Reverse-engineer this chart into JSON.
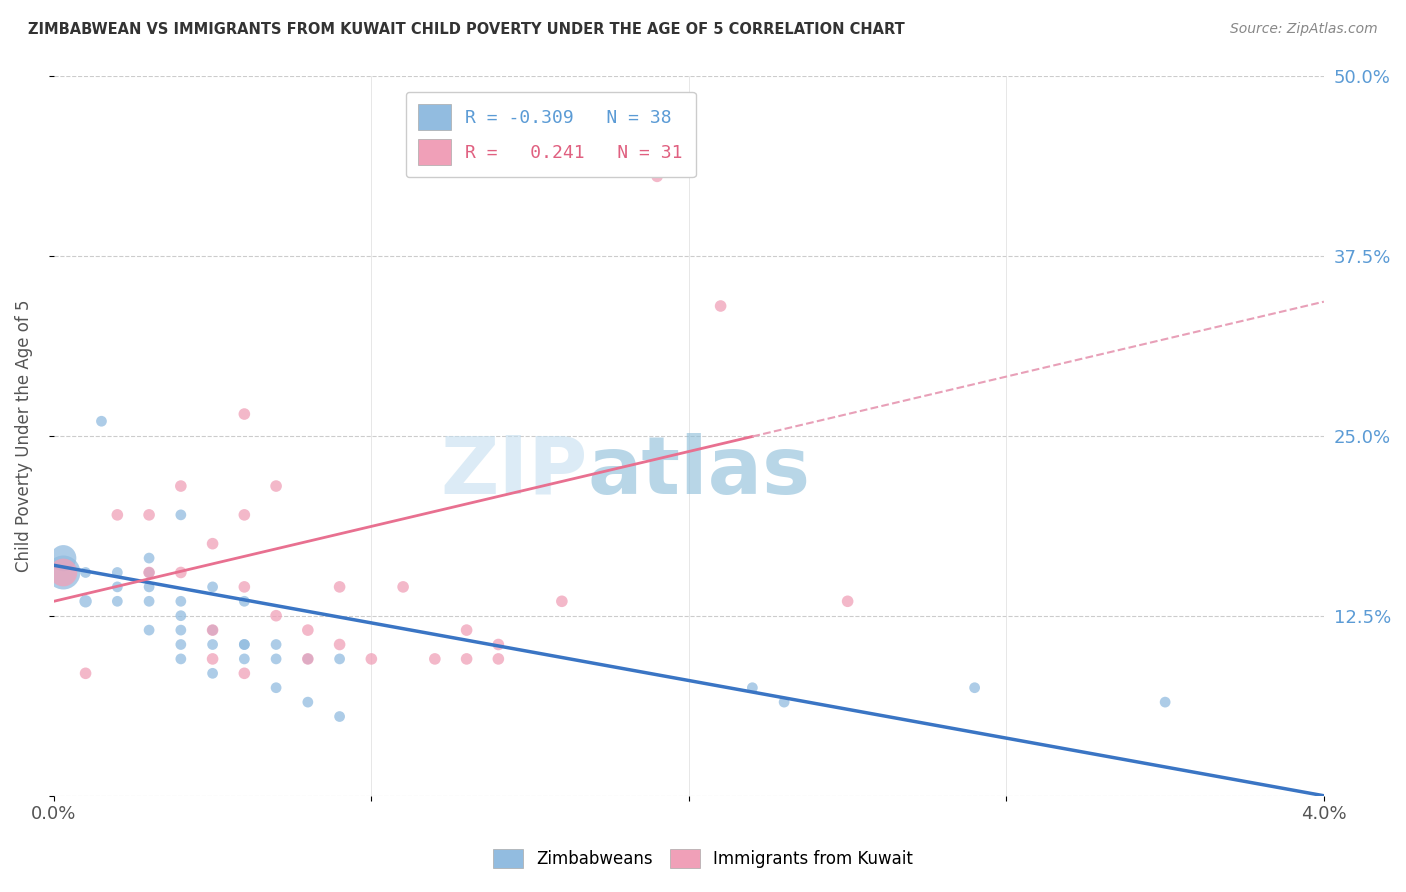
{
  "title": "ZIMBABWEAN VS IMMIGRANTS FROM KUWAIT CHILD POVERTY UNDER THE AGE OF 5 CORRELATION CHART",
  "source": "Source: ZipAtlas.com",
  "ylabel": "Child Poverty Under the Age of 5",
  "xlim": [
    0.0,
    0.04
  ],
  "ylim": [
    0.0,
    0.5
  ],
  "xticks": [
    0.0,
    0.01,
    0.02,
    0.03,
    0.04
  ],
  "xticklabels": [
    "0.0%",
    "",
    "",
    "",
    "4.0%"
  ],
  "yticks": [
    0.0,
    0.125,
    0.25,
    0.375,
    0.5
  ],
  "yticklabels": [
    "",
    "12.5%",
    "25.0%",
    "37.5%",
    "50.0%"
  ],
  "blue_color": "#92bce0",
  "pink_color": "#f0a0b8",
  "blue_line_color": "#3a75c4",
  "pink_line_color": "#e87090",
  "pink_dash_color": "#e8a0b8",
  "watermark_zip": "ZIP",
  "watermark_atlas": "atlas",
  "zimbabwe_x": [
    0.0003,
    0.0003,
    0.001,
    0.001,
    0.0015,
    0.002,
    0.002,
    0.002,
    0.003,
    0.003,
    0.003,
    0.003,
    0.003,
    0.004,
    0.004,
    0.004,
    0.004,
    0.004,
    0.004,
    0.005,
    0.005,
    0.005,
    0.005,
    0.006,
    0.006,
    0.006,
    0.006,
    0.007,
    0.007,
    0.007,
    0.008,
    0.008,
    0.009,
    0.009,
    0.022,
    0.023,
    0.029,
    0.035
  ],
  "zimbabwe_y": [
    0.155,
    0.165,
    0.135,
    0.155,
    0.26,
    0.135,
    0.145,
    0.155,
    0.115,
    0.135,
    0.145,
    0.155,
    0.165,
    0.095,
    0.105,
    0.115,
    0.125,
    0.135,
    0.195,
    0.085,
    0.105,
    0.115,
    0.145,
    0.095,
    0.105,
    0.105,
    0.135,
    0.075,
    0.095,
    0.105,
    0.065,
    0.095,
    0.055,
    0.095,
    0.075,
    0.065,
    0.075,
    0.065
  ],
  "zimbabwe_size": [
    600,
    350,
    80,
    60,
    60,
    60,
    60,
    60,
    60,
    60,
    60,
    60,
    60,
    60,
    60,
    60,
    60,
    60,
    60,
    60,
    60,
    60,
    60,
    60,
    60,
    60,
    60,
    60,
    60,
    60,
    60,
    60,
    60,
    60,
    60,
    60,
    60,
    60
  ],
  "kuwait_x": [
    0.0003,
    0.001,
    0.002,
    0.003,
    0.003,
    0.004,
    0.004,
    0.005,
    0.005,
    0.005,
    0.006,
    0.006,
    0.006,
    0.006,
    0.007,
    0.007,
    0.008,
    0.008,
    0.009,
    0.009,
    0.01,
    0.011,
    0.012,
    0.013,
    0.013,
    0.014,
    0.014,
    0.016,
    0.019,
    0.021,
    0.025
  ],
  "kuwait_y": [
    0.155,
    0.085,
    0.195,
    0.155,
    0.195,
    0.155,
    0.215,
    0.095,
    0.115,
    0.175,
    0.085,
    0.145,
    0.195,
    0.265,
    0.125,
    0.215,
    0.115,
    0.095,
    0.105,
    0.145,
    0.095,
    0.145,
    0.095,
    0.095,
    0.115,
    0.105,
    0.095,
    0.135,
    0.43,
    0.34,
    0.135
  ],
  "kuwait_size": [
    400,
    70,
    70,
    70,
    70,
    70,
    70,
    70,
    70,
    70,
    70,
    70,
    70,
    70,
    70,
    70,
    70,
    70,
    70,
    70,
    70,
    70,
    70,
    70,
    70,
    70,
    70,
    70,
    70,
    70,
    70
  ],
  "zim_trend_x0": 0.0,
  "zim_trend_y0": 0.16,
  "zim_trend_x1": 0.04,
  "zim_trend_y1": 0.0,
  "kuw_trend_x0": 0.0,
  "kuw_trend_y0": 0.135,
  "kuw_trend_x1": 0.025,
  "kuw_trend_y1": 0.265
}
